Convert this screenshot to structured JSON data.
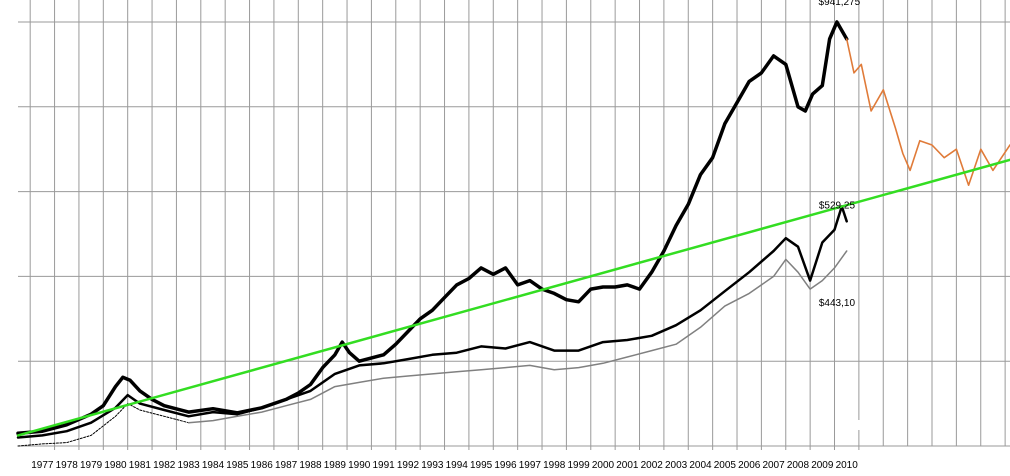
{
  "chart_data": {
    "type": "line",
    "title": "",
    "xlabel": "",
    "ylabel": "",
    "x_tick_labels": [
      "1977",
      "1978",
      "1979",
      "1980",
      "1981",
      "1982",
      "1983",
      "1984",
      "1985",
      "1986",
      "1987",
      "1988",
      "1989",
      "1990",
      "1991",
      "1992",
      "1993",
      "1994",
      "1995",
      "1996",
      "1997",
      "1998",
      "1999",
      "2000",
      "2001",
      "2002",
      "2003",
      "2004",
      "2005",
      "2006",
      "2007",
      "2008",
      "2009",
      "2010"
    ],
    "xlim": [
      1976.0,
      2016.7
    ],
    "ylim": [
      0,
      1000
    ],
    "y_gridlines": [
      200,
      400,
      600,
      800,
      1000
    ],
    "grid": true,
    "legend": "none",
    "annotations": [
      {
        "text": "$941,275",
        "x": 2009.7,
        "y": 1040
      },
      {
        "text": "$529,25",
        "x": 2009.6,
        "y": 560
      },
      {
        "text": "$443,10",
        "x": 2009.6,
        "y": 330
      }
    ],
    "series": [
      {
        "color": "#000000",
        "width": 3.5,
        "x": [
          1976.0,
          1977.0,
          1978.0,
          1979.0,
          1979.5,
          1980.0,
          1980.3,
          1980.6,
          1981.0,
          1981.5,
          1982.0,
          1983.0,
          1984.0,
          1985.0,
          1986.0,
          1987.0,
          1987.5,
          1988.0,
          1988.5,
          1989.0,
          1989.3,
          1989.6,
          1990.0,
          1991.0,
          1991.5,
          1992.0,
          1992.5,
          1993.0,
          1993.5,
          1994.0,
          1994.5,
          1995.0,
          1995.5,
          1996.0,
          1996.5,
          1997.0,
          1997.5,
          1998.0,
          1998.5,
          1999.0,
          1999.5,
          2000.0,
          2000.5,
          2001.0,
          2001.5,
          2002.0,
          2002.5,
          2003.0,
          2003.5,
          2004.0,
          2004.5,
          2005.0,
          2005.5,
          2006.0,
          2006.5,
          2007.0,
          2007.5,
          2008.0,
          2008.3,
          2008.6,
          2009.0,
          2009.3,
          2009.6,
          2010.0
        ],
        "y": [
          30,
          35,
          50,
          75,
          95,
          140,
          162,
          155,
          130,
          110,
          95,
          80,
          88,
          78,
          90,
          110,
          125,
          145,
          185,
          215,
          245,
          220,
          200,
          215,
          240,
          270,
          300,
          320,
          350,
          380,
          395,
          420,
          405,
          420,
          380,
          390,
          370,
          360,
          345,
          340,
          370,
          375,
          375,
          380,
          370,
          410,
          460,
          520,
          570,
          640,
          680,
          760,
          810,
          860,
          880,
          920,
          900,
          800,
          790,
          830,
          850,
          960,
          1000,
          960
        ]
      },
      {
        "color": "#e07b39",
        "width": 1.6,
        "x": [
          2010.0,
          2010.3,
          2010.6,
          2011.0,
          2011.5,
          2012.0,
          2012.3,
          2012.6,
          2013.0,
          2013.5,
          2014.0,
          2014.5,
          2015.0,
          2015.5,
          2016.0,
          2016.7
        ],
        "y": [
          960,
          880,
          900,
          790,
          840,
          750,
          690,
          650,
          720,
          710,
          680,
          700,
          615,
          700,
          650,
          710
        ]
      },
      {
        "color": "#000000",
        "width": 2.5,
        "x": [
          1976.0,
          1977.0,
          1978.0,
          1979.0,
          1980.0,
          1980.5,
          1981.0,
          1982.0,
          1983.0,
          1984.0,
          1985.0,
          1986.0,
          1987.0,
          1988.0,
          1989.0,
          1990.0,
          1991.0,
          1992.0,
          1993.0,
          1994.0,
          1995.0,
          1996.0,
          1997.0,
          1998.0,
          1999.0,
          2000.0,
          2001.0,
          2002.0,
          2003.0,
          2004.0,
          2005.0,
          2006.0,
          2007.0,
          2007.5,
          2008.0,
          2008.5,
          2009.0,
          2009.5,
          2009.8,
          2010.0
        ],
        "y": [
          20,
          25,
          35,
          55,
          90,
          120,
          100,
          85,
          70,
          80,
          75,
          90,
          110,
          130,
          170,
          190,
          195,
          205,
          215,
          220,
          235,
          230,
          245,
          225,
          225,
          245,
          250,
          260,
          285,
          320,
          365,
          410,
          460,
          490,
          470,
          390,
          480,
          510,
          565,
          530
        ]
      },
      {
        "color": "#000000",
        "width": 1.0,
        "dash": "2,1.5",
        "x": [
          1976.0,
          1977.0,
          1978.0,
          1979.0,
          1980.0,
          1980.5,
          1981.0,
          1982.0,
          1983.0
        ],
        "y": [
          0,
          5,
          8,
          25,
          70,
          100,
          85,
          70,
          55
        ]
      },
      {
        "color": "#808080",
        "width": 1.5,
        "x": [
          1983.0,
          1984.0,
          1985.0,
          1986.0,
          1987.0,
          1988.0,
          1989.0,
          1990.0,
          1991.0,
          1992.0,
          1993.0,
          1994.0,
          1995.0,
          1996.0,
          1997.0,
          1998.0,
          1999.0,
          2000.0,
          2001.0,
          2002.0,
          2003.0,
          2004.0,
          2005.0,
          2006.0,
          2007.0,
          2007.5,
          2008.0,
          2008.5,
          2009.0,
          2009.5,
          2010.0
        ],
        "y": [
          55,
          60,
          70,
          80,
          95,
          110,
          140,
          150,
          160,
          165,
          170,
          175,
          180,
          185,
          190,
          180,
          185,
          195,
          210,
          225,
          240,
          280,
          330,
          360,
          400,
          440,
          410,
          370,
          390,
          420,
          460
        ]
      },
      {
        "color": "#33dd22",
        "width": 2.5,
        "x": [
          1976.0,
          2016.7
        ],
        "y": [
          25,
          675
        ]
      }
    ]
  }
}
